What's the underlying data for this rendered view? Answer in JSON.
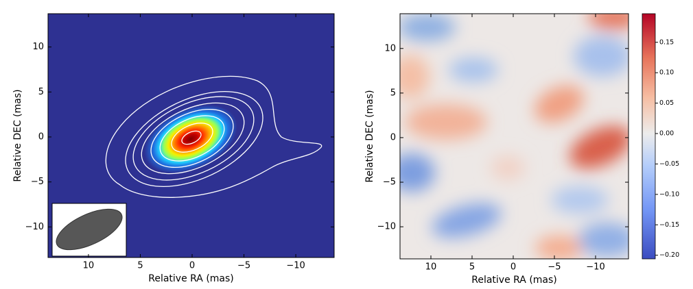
{
  "chart_data": [
    {
      "type": "heatmap",
      "colormap": "jet",
      "xlabel": "Relative RA (mas)",
      "ylabel": "Relative DEC (mas)",
      "xlim": [
        13.9,
        -13.7
      ],
      "ylim": [
        -13.4,
        13.7
      ],
      "xticks": [
        10,
        5,
        0,
        {
          "value": -5,
          "label": "−5"
        },
        {
          "value": -10,
          "label": "−10"
        }
      ],
      "yticks": [
        {
          "value": -10,
          "label": "−10"
        },
        {
          "value": -5,
          "label": "−5"
        },
        0,
        5,
        10
      ]
    },
    {
      "type": "heatmap",
      "colormap": "coolwarm",
      "xlabel": "Relative RA (mas)",
      "ylabel": "Relative DEC (mas)",
      "xlim": [
        13.75,
        -14
      ],
      "ylim": [
        -13.6,
        13.9
      ],
      "xticks": [
        10,
        5,
        0,
        {
          "value": -5,
          "label": "−5"
        },
        {
          "value": -10,
          "label": "−10"
        }
      ],
      "yticks": [
        {
          "value": -10,
          "label": "−10"
        },
        {
          "value": -5,
          "label": "−5"
        },
        0,
        5,
        10
      ],
      "colorbar": {
        "lim": [
          -0.206,
          0.197
        ],
        "ticks": [
          {
            "value": -0.2,
            "label": "−0.20"
          },
          {
            "value": -0.15,
            "label": "−0.15"
          },
          {
            "value": -0.1,
            "label": "−0.10"
          },
          {
            "value": -0.05,
            "label": "−0.05"
          },
          {
            "value": 0,
            "label": "0.00"
          },
          {
            "value": 0.05,
            "label": "0.05"
          },
          {
            "value": 0.1,
            "label": "0.10"
          },
          {
            "value": 0.15,
            "label": "0.15"
          }
        ]
      }
    }
  ]
}
